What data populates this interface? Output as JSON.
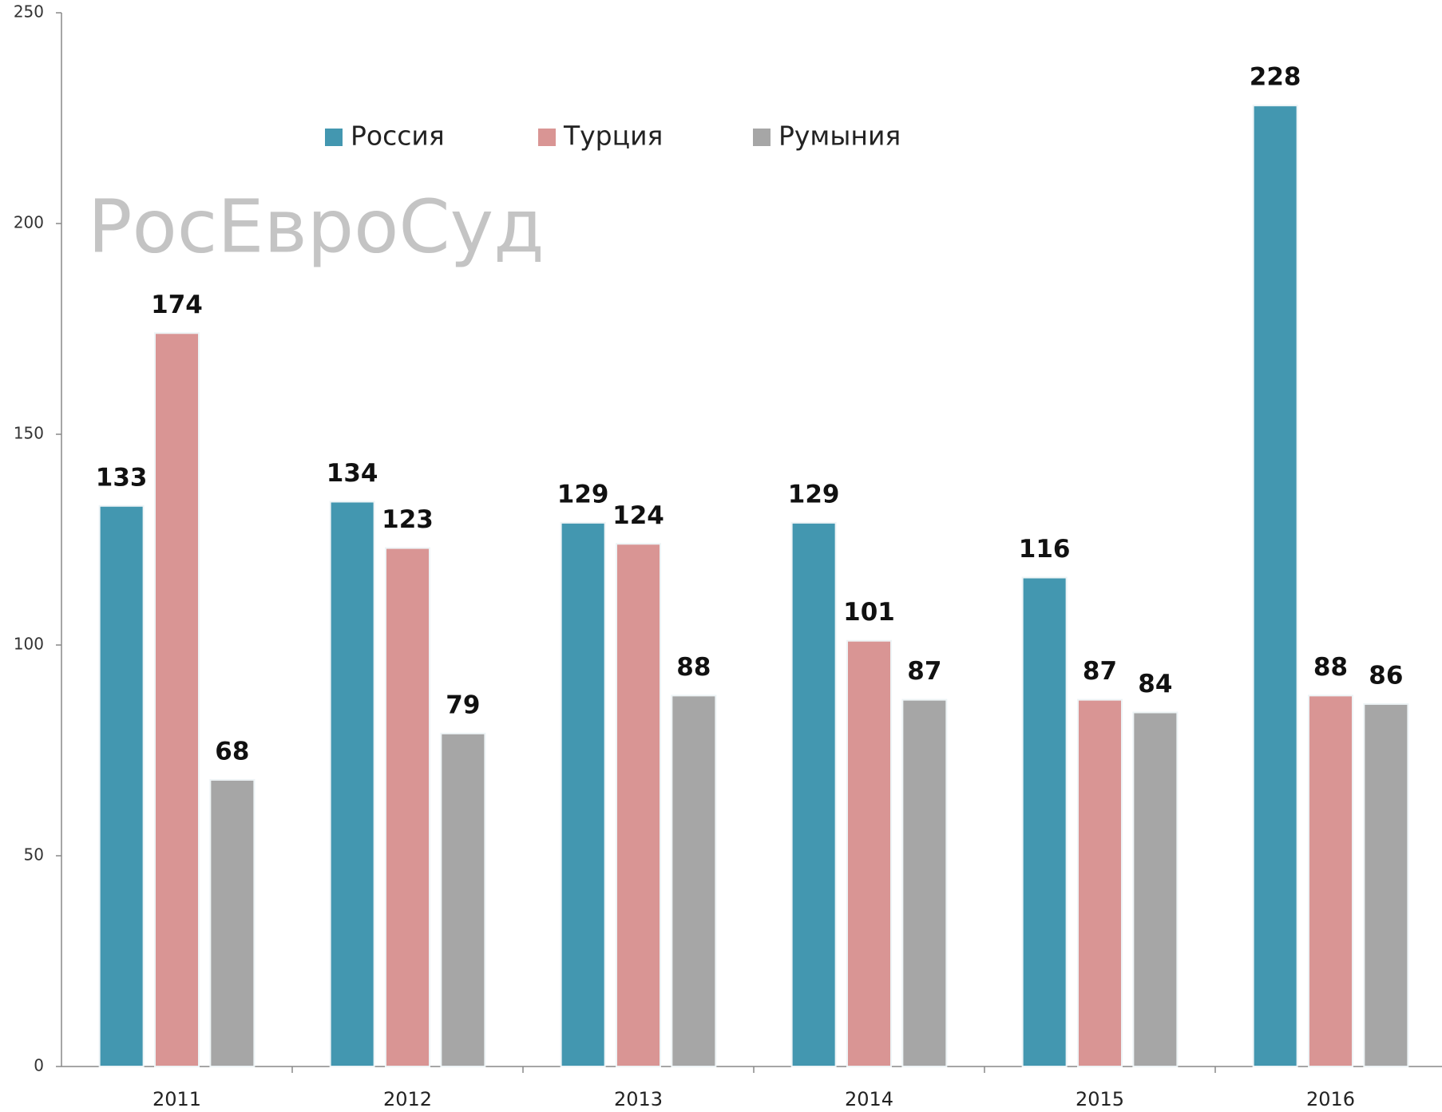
{
  "chart_data": {
    "type": "bar",
    "watermark": "РосЕвроСуд",
    "categories": [
      "2011",
      "2012",
      "2013",
      "2014",
      "2015",
      "2016"
    ],
    "series": [
      {
        "name": "Россия",
        "color": "#4397b0",
        "values": [
          133,
          134,
          129,
          129,
          116,
          228
        ]
      },
      {
        "name": "Турция",
        "color": "#d99594",
        "values": [
          174,
          123,
          124,
          101,
          87,
          88
        ]
      },
      {
        "name": "Румыния",
        "color": "#a6a6a6",
        "values": [
          68,
          79,
          88,
          87,
          84,
          86
        ]
      }
    ],
    "ylim": [
      0,
      250
    ],
    "yticks": [
      0,
      50,
      100,
      150,
      200,
      250
    ],
    "grid": false
  }
}
